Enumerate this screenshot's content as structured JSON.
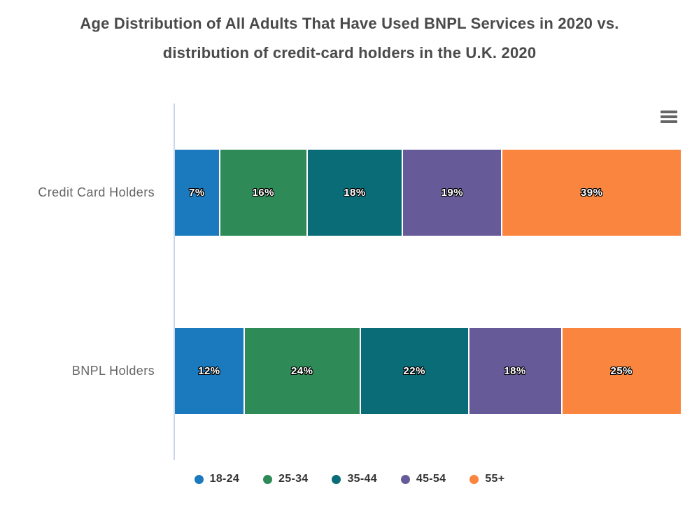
{
  "header": {
    "title_lines": [
      "Age Distribution of All Adults That Have Used BNPL Services in 2020 vs.",
      "distribution of credit-card holders in the U.K. 2020"
    ]
  },
  "toolbar": {
    "context_menu_icon": "hamburger-menu-icon"
  },
  "chart_data": {
    "type": "bar",
    "orientation": "horizontal",
    "stacking": "percent",
    "title": "Age Distribution of All Adults That Have Used BNPL Services in 2020 vs. distribution of credit-card holders in the U.K. 2020",
    "categories": [
      "Credit Card Holders",
      "BNPL Holders"
    ],
    "series": [
      {
        "name": "18-24",
        "color": "#1b79bd",
        "values": [
          7,
          12
        ]
      },
      {
        "name": "25-34",
        "color": "#2e8b57",
        "values": [
          16,
          24
        ]
      },
      {
        "name": "35-44",
        "color": "#0a6c77",
        "values": [
          18,
          22
        ]
      },
      {
        "name": "45-54",
        "color": "#675a99",
        "values": [
          19,
          18
        ]
      },
      {
        "name": "55+",
        "color": "#f9853e",
        "values": [
          39,
          25
        ]
      }
    ],
    "data_labels": {
      "Credit Card Holders": [
        "7%",
        "16%",
        "18%",
        "19%",
        "39%"
      ],
      "BNPL Holders": [
        "12%",
        "24%",
        "22%",
        "18%",
        "25%"
      ]
    },
    "value_suffix": "%",
    "legend_position": "bottom",
    "legend_entries": [
      "18-24",
      "25-34",
      "35-44",
      "45-54",
      "55+"
    ],
    "grid": false
  },
  "colors": {
    "background": "#ffffff",
    "title_text": "#4a4a4a",
    "category_label_text": "#666666",
    "legend_text": "#333333",
    "axis_line": "#ccd6eb",
    "menu_icon": "#666666",
    "data_label_text": "#ffffff",
    "data_label_outline": "#000000"
  }
}
